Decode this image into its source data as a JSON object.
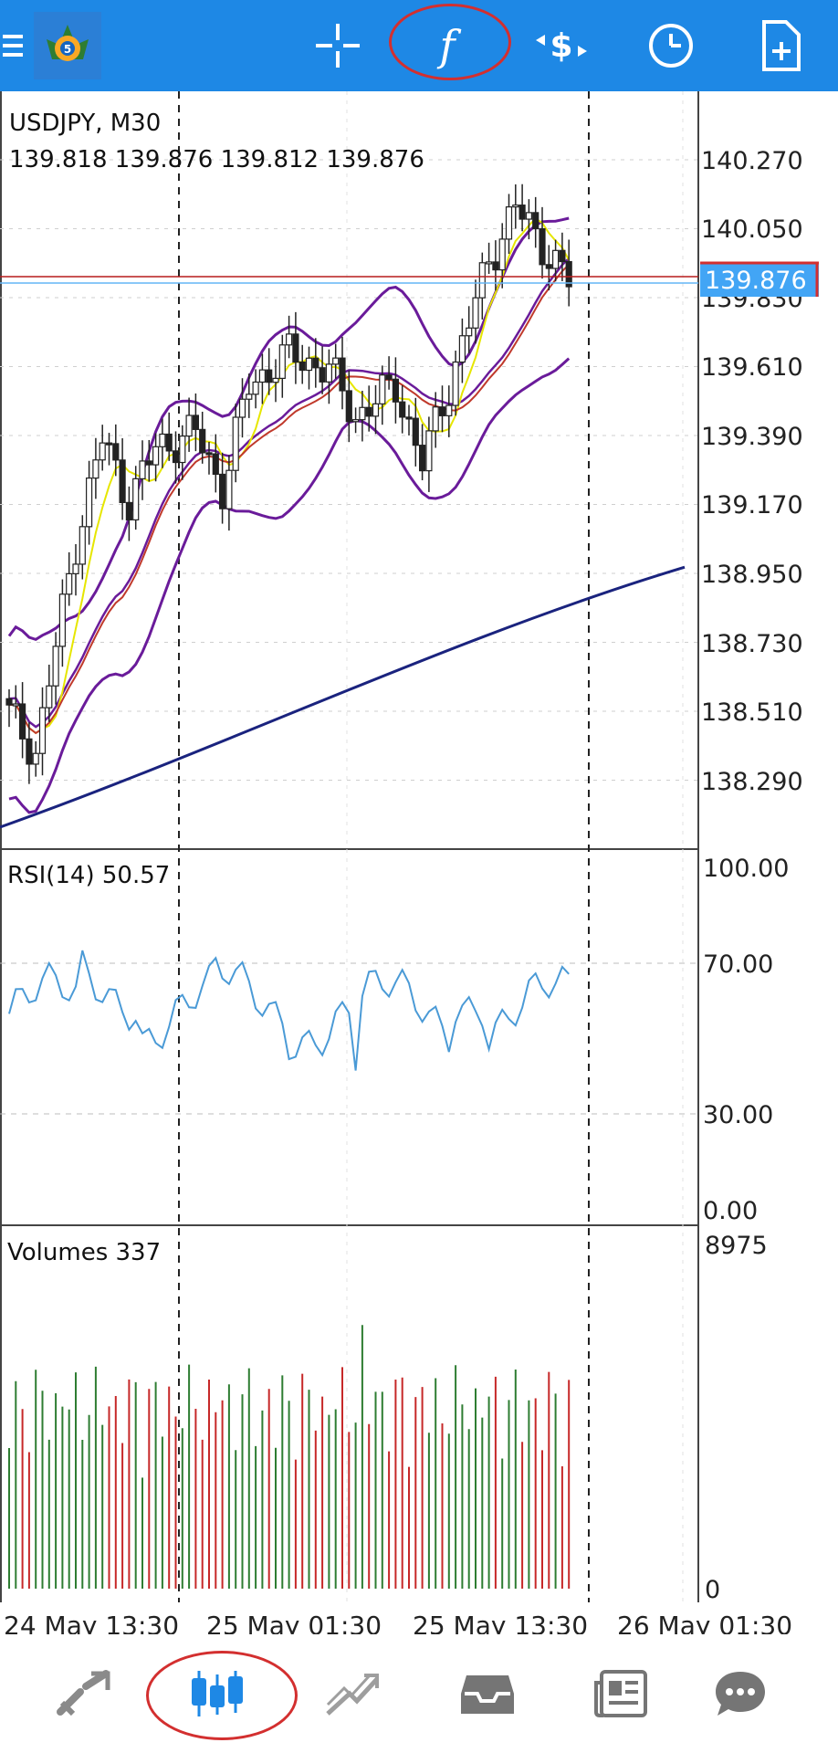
{
  "topbar": {
    "background": "#1e88e5",
    "items": [
      {
        "name": "menu-icon"
      },
      {
        "name": "metatrader-logo"
      },
      {
        "name": "crosshair-icon"
      },
      {
        "name": "indicators-f-icon",
        "glyph": "f"
      },
      {
        "name": "symbol-dollar-icon"
      },
      {
        "name": "timeframe-clock-icon"
      },
      {
        "name": "new-order-icon"
      }
    ]
  },
  "chart": {
    "symbol_title": "USDJPY, M30",
    "ohlc_line": "139.818 139.876 139.812 139.876",
    "current_price": "139.876",
    "price_axis_labels": [
      "140.270",
      "140.050",
      "139.830",
      "139.610",
      "139.390",
      "139.170",
      "138.950",
      "138.730",
      "138.510",
      "138.290"
    ],
    "rsi": {
      "label": "RSI(14) 50.57",
      "axis_labels": [
        "100.00",
        "70.00",
        "30.00",
        "0.00"
      ]
    },
    "volumes": {
      "label": "Volumes 337",
      "axis_labels": [
        "8975",
        "0"
      ]
    },
    "time_labels": [
      "24 May 13:30",
      "25 May 01:30",
      "25 May 13:30",
      "26 May 01:30"
    ],
    "colors": {
      "bull": "#2e7d32",
      "bear": "#c62828",
      "bollinger": "#6a1b9a",
      "ma_fast": "#e6e600",
      "ma_mid": "#c0392b",
      "ma_slow": "#1a237e",
      "rsi_line": "#4a9ad6",
      "price_badge": "#42a5f5"
    }
  },
  "bottombar": {
    "items": [
      {
        "name": "quotes-tab-icon"
      },
      {
        "name": "chart-tab-icon"
      },
      {
        "name": "trade-tab-icon"
      },
      {
        "name": "history-tab-icon"
      },
      {
        "name": "news-tab-icon"
      },
      {
        "name": "chat-tab-icon"
      }
    ],
    "active_color": "#1e88e5",
    "inactive_color": "#9e9e9e"
  }
}
